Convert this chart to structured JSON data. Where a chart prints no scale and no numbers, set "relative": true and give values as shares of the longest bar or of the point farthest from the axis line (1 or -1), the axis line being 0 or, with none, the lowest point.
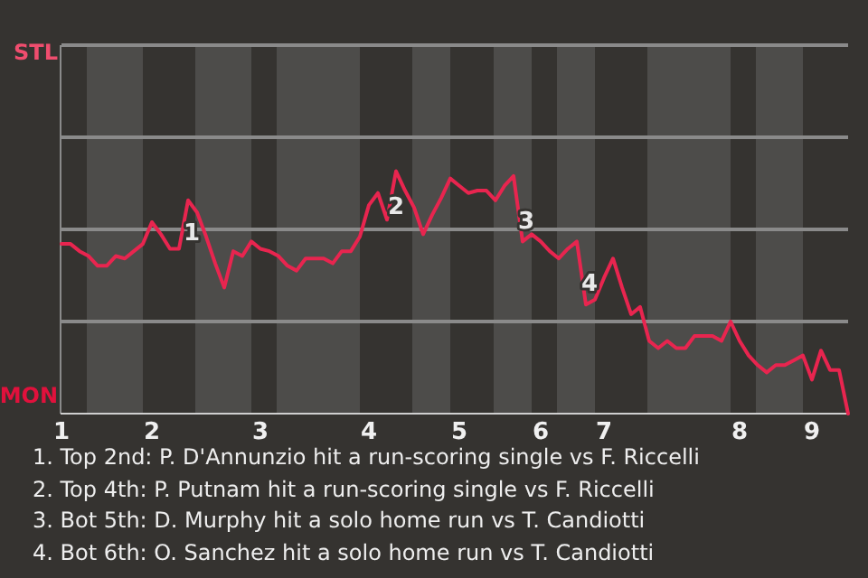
{
  "chart_data": {
    "type": "line",
    "relative": true,
    "categories": [
      "1",
      null,
      null,
      null,
      null,
      null,
      null,
      null,
      null,
      null,
      "2",
      null,
      null,
      null,
      null,
      null,
      null,
      null,
      null,
      null,
      null,
      null,
      "3",
      null,
      null,
      null,
      null,
      null,
      null,
      null,
      null,
      null,
      null,
      null,
      "4",
      null,
      null,
      null,
      null,
      null,
      null,
      null,
      null,
      null,
      "5",
      null,
      null,
      null,
      null,
      null,
      null,
      null,
      null,
      "6",
      null,
      null,
      null,
      null,
      null,
      null,
      "7",
      null,
      null,
      null,
      null,
      null,
      null,
      null,
      null,
      null,
      null,
      null,
      null,
      null,
      null,
      "8",
      null,
      null,
      null,
      null,
      null,
      null,
      null,
      "9",
      null,
      null,
      null,
      null
    ],
    "series": [
      {
        "color": "#e8254f",
        "values": [
          0.7,
          0.7,
          0.67,
          0.65,
          0.61,
          0.61,
          0.65,
          0.64,
          0.67,
          0.7,
          0.79,
          0.74,
          0.68,
          0.68,
          0.88,
          0.83,
          0.73,
          0.62,
          0.52,
          0.67,
          0.65,
          0.71,
          0.68,
          0.67,
          0.65,
          0.61,
          0.59,
          0.64,
          0.64,
          0.64,
          0.62,
          0.67,
          0.67,
          0.73,
          0.86,
          0.91,
          0.8,
          1,
          0.92,
          0.85,
          0.74,
          0.82,
          0.89,
          0.97,
          0.94,
          0.91,
          0.92,
          0.92,
          0.88,
          0.94,
          0.98,
          0.71,
          0.74,
          0.71,
          0.67,
          0.64,
          0.68,
          0.71,
          0.45,
          0.47,
          0.56,
          0.64,
          0.52,
          0.41,
          0.44,
          0.3,
          0.27,
          0.3,
          0.27,
          0.27,
          0.32,
          0.32,
          0.32,
          0.3,
          0.38,
          0.3,
          0.24,
          0.2,
          0.17,
          0.2,
          0.2,
          0.22,
          0.24,
          0.14,
          0.26,
          0.18,
          0.18,
          0
        ]
      }
    ],
    "legend": false,
    "marker": "none",
    "line_style": "solid",
    "ref_lines": [
      {
        "axis": "y",
        "value": 0.38,
        "color": "#8a8a8a"
      },
      {
        "axis": "y",
        "value": 0.76,
        "color": "#8a8a8a"
      },
      {
        "axis": "y",
        "value": 1.14,
        "color": "#8a8a8a"
      }
    ],
    "annotations": [
      "STL",
      "MON",
      {
        "text": "1",
        "y": 0.74
      },
      {
        "text": "2",
        "y": 0.85
      },
      {
        "text": "3",
        "y": 0.79
      },
      {
        "text": "4",
        "y": 0.53
      },
      "1. Top 2nd: P. D'Annunzio hit a run-scoring single vs F. Riccelli",
      "2. Top 4th: P. Putnam hit a run-scoring single vs F. Riccelli",
      "3. Bot 5th: D. Murphy hit a solo home run vs T. Candiotti",
      "4. Bot 6th: O. Sanchez hit a solo home run vs T. Candiotti"
    ]
  }
}
